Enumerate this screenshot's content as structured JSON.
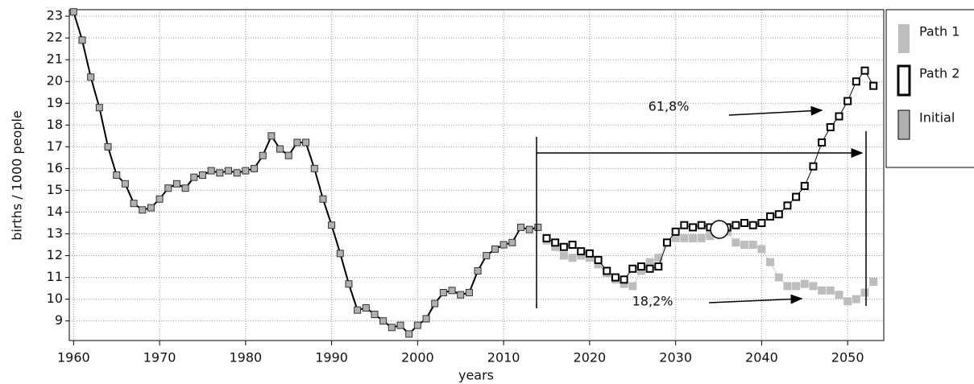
{
  "chart_data": {
    "type": "line",
    "x_label": "years",
    "y_label": "births / 1000 people",
    "xlim": [
      1959.5,
      2054.2
    ],
    "ylim": [
      8.1,
      23.3
    ],
    "xticks": [
      1960,
      1970,
      1980,
      1990,
      2000,
      2010,
      2020,
      2030,
      2040,
      2050
    ],
    "yticks": [
      9,
      10,
      11,
      12,
      13,
      14,
      15,
      16,
      17,
      18,
      19,
      20,
      21,
      22,
      23
    ],
    "grid": true,
    "legend": "right",
    "annotations": [
      "61,8%",
      "18,2%"
    ],
    "series": [
      {
        "name": "Path 1",
        "color": "#bdbdbd",
        "style": "path1",
        "x": [
          2015,
          2016,
          2017,
          2018,
          2019,
          2020,
          2021,
          2022,
          2023,
          2024,
          2025,
          2026,
          2027,
          2028,
          2029,
          2030,
          2031,
          2032,
          2033,
          2034,
          2035,
          2036,
          2037,
          2038,
          2039,
          2040,
          2041,
          2042,
          2043,
          2044,
          2045,
          2046,
          2047,
          2048,
          2049,
          2050,
          2051,
          2052,
          2053
        ],
        "values": [
          12.7,
          12.4,
          12.0,
          11.9,
          12.0,
          11.9,
          11.6,
          11.2,
          10.9,
          10.7,
          10.6,
          11.3,
          11.7,
          11.9,
          12.6,
          12.8,
          12.8,
          12.8,
          12.8,
          12.9,
          13.2,
          13.1,
          12.6,
          12.5,
          12.5,
          12.3,
          11.7,
          11.0,
          10.6,
          10.6,
          10.7,
          10.6,
          10.4,
          10.4,
          10.2,
          9.9,
          10.0,
          10.3,
          10.8
        ]
      },
      {
        "name": "Path 2",
        "color": "#000000",
        "style": "path2",
        "x": [
          2015,
          2016,
          2017,
          2018,
          2019,
          2020,
          2021,
          2022,
          2023,
          2024,
          2025,
          2026,
          2027,
          2028,
          2029,
          2030,
          2031,
          2032,
          2033,
          2034,
          2035,
          2036,
          2037,
          2038,
          2039,
          2040,
          2041,
          2042,
          2043,
          2044,
          2045,
          2046,
          2047,
          2048,
          2049,
          2050,
          2051,
          2052,
          2053
        ],
        "values": [
          12.8,
          12.6,
          12.4,
          12.5,
          12.2,
          12.1,
          11.8,
          11.3,
          11.0,
          10.9,
          11.4,
          11.5,
          11.4,
          11.5,
          12.6,
          13.1,
          13.4,
          13.3,
          13.4,
          13.3,
          13.3,
          13.3,
          13.4,
          13.5,
          13.4,
          13.5,
          13.8,
          13.9,
          14.3,
          14.7,
          15.2,
          16.1,
          17.2,
          17.9,
          18.4,
          19.1,
          20.0,
          20.5,
          19.8
        ]
      },
      {
        "name": "Initial",
        "color": "#b0b0b0",
        "style": "initial",
        "x": [
          1960,
          1961,
          1962,
          1963,
          1964,
          1965,
          1966,
          1967,
          1968,
          1969,
          1970,
          1971,
          1972,
          1973,
          1974,
          1975,
          1976,
          1977,
          1978,
          1979,
          1980,
          1981,
          1982,
          1983,
          1984,
          1985,
          1986,
          1987,
          1988,
          1989,
          1990,
          1991,
          1992,
          1993,
          1994,
          1995,
          1996,
          1997,
          1998,
          1999,
          2000,
          2001,
          2002,
          2003,
          2004,
          2005,
          2006,
          2007,
          2008,
          2009,
          2010,
          2011,
          2012,
          2013,
          2014
        ],
        "values": [
          23.2,
          21.9,
          20.2,
          18.8,
          17.0,
          15.7,
          15.3,
          14.4,
          14.1,
          14.2,
          14.6,
          15.1,
          15.3,
          15.1,
          15.6,
          15.7,
          15.9,
          15.8,
          15.9,
          15.8,
          15.9,
          16.0,
          16.6,
          17.5,
          16.9,
          16.6,
          17.2,
          17.2,
          16.0,
          14.6,
          13.4,
          12.1,
          10.7,
          9.5,
          9.6,
          9.3,
          9.0,
          8.7,
          8.8,
          8.4,
          8.8,
          9.1,
          9.8,
          10.3,
          10.4,
          10.2,
          10.3,
          11.3,
          12.0,
          12.3,
          12.5,
          12.6,
          13.3,
          13.2,
          13.3
        ]
      }
    ]
  }
}
